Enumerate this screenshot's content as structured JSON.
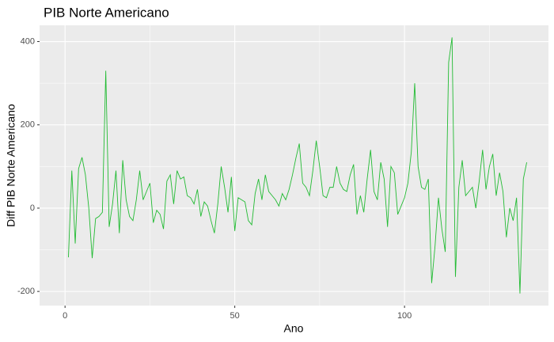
{
  "chart_data": {
    "type": "line",
    "title": "PIB Norte Americano",
    "x_label": "Ano",
    "y_label": "Diff PIB Norte Americano",
    "x": [
      1,
      2,
      3,
      4,
      5,
      6,
      7,
      8,
      9,
      10,
      11,
      12,
      13,
      14,
      15,
      16,
      17,
      18,
      19,
      20,
      21,
      22,
      23,
      24,
      25,
      26,
      27,
      28,
      29,
      30,
      31,
      32,
      33,
      34,
      35,
      36,
      37,
      38,
      39,
      40,
      41,
      42,
      43,
      44,
      45,
      46,
      47,
      48,
      49,
      50,
      51,
      52,
      53,
      54,
      55,
      56,
      57,
      58,
      59,
      60,
      61,
      62,
      63,
      64,
      65,
      66,
      67,
      68,
      69,
      70,
      71,
      72,
      73,
      74,
      75,
      76,
      77,
      78,
      79,
      80,
      81,
      82,
      83,
      84,
      85,
      86,
      87,
      88,
      89,
      90,
      91,
      92,
      93,
      94,
      95,
      96,
      97,
      98,
      99,
      100,
      101,
      102,
      103,
      104,
      105,
      106,
      107,
      108,
      109,
      110,
      111,
      112,
      113,
      114,
      115,
      116,
      117,
      118,
      119,
      120,
      121,
      122,
      123,
      124,
      125,
      126,
      127,
      128,
      129,
      130,
      131,
      132,
      133,
      134,
      135,
      136
    ],
    "series": [
      {
        "name": "Diff PIB Norte Americano",
        "color": "#22bb33",
        "values": [
          -118,
          90,
          -85,
          95,
          122,
          80,
          0,
          -120,
          -25,
          -20,
          -10,
          330,
          -45,
          10,
          90,
          -60,
          115,
          20,
          -20,
          -30,
          20,
          90,
          20,
          40,
          60,
          -35,
          -5,
          -15,
          -50,
          65,
          80,
          10,
          90,
          70,
          75,
          30,
          25,
          10,
          45,
          -20,
          15,
          5,
          -30,
          -60,
          10,
          100,
          50,
          -10,
          75,
          -55,
          25,
          20,
          15,
          -30,
          -40,
          35,
          70,
          20,
          80,
          40,
          30,
          20,
          5,
          35,
          20,
          45,
          80,
          120,
          155,
          60,
          50,
          30,
          90,
          162,
          100,
          30,
          25,
          50,
          50,
          100,
          60,
          45,
          40,
          80,
          105,
          -15,
          30,
          -10,
          70,
          140,
          40,
          20,
          110,
          70,
          -45,
          100,
          85,
          -15,
          5,
          25,
          60,
          135,
          300,
          100,
          50,
          45,
          70,
          -180,
          -90,
          25,
          -50,
          -105,
          350,
          410,
          -165,
          50,
          115,
          30,
          40,
          50,
          0,
          65,
          140,
          45,
          100,
          130,
          30,
          85,
          40,
          -70,
          0,
          -30,
          25,
          -205,
          70,
          110
        ]
      }
    ],
    "xlim": [
      -7.5,
      142.4
    ],
    "ylim": [
      -234,
      439
    ],
    "xticks": [
      0,
      50,
      100
    ],
    "yticks": [
      -200,
      0,
      200,
      400
    ],
    "xminor": [
      25,
      75,
      125
    ],
    "yminor": [
      -100,
      100,
      300
    ],
    "grid": true
  }
}
